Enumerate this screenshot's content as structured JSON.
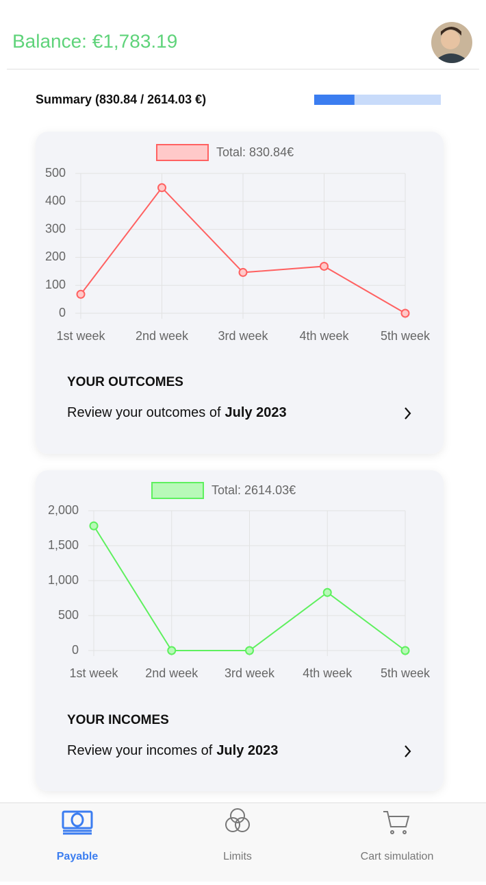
{
  "header": {
    "balance": "Balance: €1,783.19"
  },
  "summary": {
    "label": "Summary (830.84 / 2614.03 €)",
    "progress": {
      "value": 830.84,
      "max": 2614.03
    }
  },
  "chart_data": [
    {
      "type": "line",
      "categories": [
        "1st week",
        "2nd week",
        "3rd week",
        "4th week",
        "5th week"
      ],
      "series": [
        {
          "name": "Total: 830.84€",
          "color": "#ff6161",
          "fill": "#ffc9c9",
          "values": [
            68,
            449,
            146,
            168,
            0
          ]
        }
      ],
      "ylim": [
        0,
        500
      ],
      "yticks": [
        0,
        100,
        200,
        300,
        400,
        500
      ],
      "grid": true
    },
    {
      "type": "line",
      "categories": [
        "1st week",
        "2nd week",
        "3rd week",
        "4th week",
        "5th week"
      ],
      "series": [
        {
          "name": "Total: 2614.03€",
          "color": "#5ef05e",
          "fill": "#b8f9b8",
          "values": [
            1783.19,
            0,
            0,
            830.84,
            0
          ]
        }
      ],
      "ylim": [
        0,
        2000
      ],
      "yticks": [
        0,
        500,
        {
          "value": 1000,
          "label": "1,000"
        },
        {
          "value": 1500,
          "label": "1,500"
        },
        {
          "value": 2000,
          "label": "2,000"
        }
      ],
      "grid": true
    }
  ],
  "cards": [
    {
      "title": "YOUR OUTCOMES",
      "text": "Review your outcomes of",
      "period": "July 2023"
    },
    {
      "title": "YOUR INCOMES",
      "text": "Review your incomes of",
      "period": "July 2023"
    }
  ],
  "tabs": [
    "Payable",
    "Limits",
    "Cart simulation"
  ]
}
